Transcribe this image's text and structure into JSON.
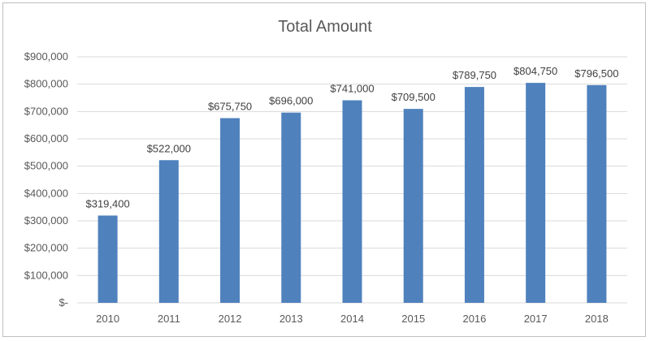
{
  "chart_data": {
    "type": "bar",
    "title": "Total Amount",
    "categories": [
      "2010",
      "2011",
      "2012",
      "2013",
      "2014",
      "2015",
      "2016",
      "2017",
      "2018"
    ],
    "values": [
      319400,
      522000,
      675750,
      696000,
      741000,
      709500,
      789750,
      804750,
      796500
    ],
    "data_labels": [
      "$319,400",
      "$522,000",
      "$675,750",
      "$696,000",
      "$741,000",
      "$709,500",
      "$789,750",
      "$804,750",
      "$796,500"
    ],
    "y_ticks": [
      0,
      100000,
      200000,
      300000,
      400000,
      500000,
      600000,
      700000,
      800000,
      900000
    ],
    "y_tick_labels": [
      "$-",
      "$100,000",
      "$200,000",
      "$300,000",
      "$400,000",
      "$500,000",
      "$600,000",
      "$700,000",
      "$800,000",
      "$900,000"
    ],
    "ylim": [
      0,
      900000
    ],
    "xlabel": "",
    "ylabel": "",
    "grid": true,
    "legend": "none",
    "colors": {
      "bar": "#4f81bd",
      "grid": "#d9d9d9",
      "text": "#595959"
    }
  }
}
